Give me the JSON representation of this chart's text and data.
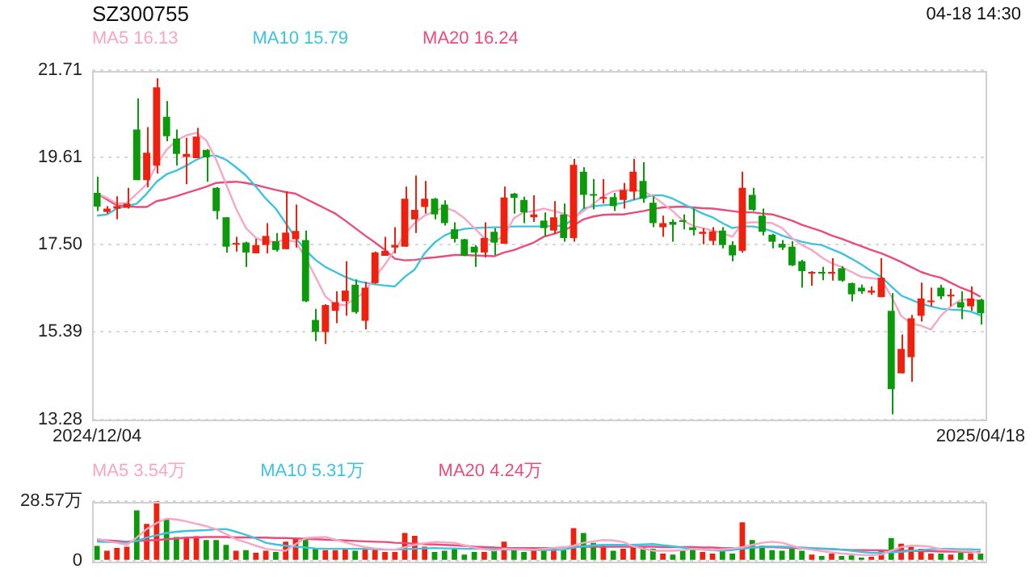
{
  "chart_data": [
    {
      "type": "candlestick",
      "title": "SZ300755",
      "annotations": [
        "04-18 14:30"
      ],
      "legend": "top left",
      "grid": "y",
      "ylim": [
        13.28,
        21.71
      ],
      "yticks": [
        21.71,
        19.61,
        {
          "value": 17.5,
          "label": "17.50"
        },
        15.39,
        13.28
      ],
      "categories": [
        "2024/12/04",
        null,
        null,
        null,
        null,
        null,
        null,
        null,
        null,
        null,
        null,
        null,
        null,
        null,
        null,
        null,
        null,
        null,
        null,
        null,
        null,
        null,
        null,
        null,
        null,
        null,
        null,
        null,
        null,
        null,
        null,
        null,
        null,
        null,
        null,
        null,
        null,
        null,
        null,
        null,
        null,
        null,
        null,
        null,
        null,
        null,
        null,
        null,
        null,
        null,
        null,
        null,
        null,
        null,
        null,
        null,
        null,
        null,
        null,
        null,
        null,
        null,
        null,
        null,
        null,
        null,
        null,
        null,
        null,
        null,
        null,
        null,
        null,
        null,
        null,
        null,
        null,
        null,
        null,
        null,
        null,
        null,
        null,
        null,
        null,
        null,
        null,
        null,
        null,
        "2025/04/18"
      ],
      "ohlc": [
        [
          18.75,
          19.14,
          18.31,
          18.42
        ],
        [
          18.29,
          18.43,
          18.25,
          18.37
        ],
        [
          18.37,
          18.67,
          18.11,
          18.43
        ],
        [
          18.39,
          18.87,
          18.37,
          18.49
        ],
        [
          20.28,
          21.03,
          19.06,
          19.06
        ],
        [
          19.06,
          20.34,
          18.88,
          19.72
        ],
        [
          19.41,
          21.52,
          19.22,
          21.3
        ],
        [
          20.59,
          20.97,
          20.0,
          20.12
        ],
        [
          20.06,
          20.28,
          19.41,
          19.69
        ],
        [
          19.62,
          20.08,
          18.96,
          19.69
        ],
        [
          19.59,
          20.32,
          19.59,
          20.11
        ],
        [
          19.79,
          19.81,
          19.02,
          19.61
        ],
        [
          18.87,
          18.89,
          18.11,
          18.31
        ],
        [
          18.16,
          18.16,
          17.31,
          17.45
        ],
        [
          17.5,
          17.69,
          17.33,
          17.52
        ],
        [
          17.55,
          17.57,
          16.96,
          17.31
        ],
        [
          17.29,
          17.64,
          17.29,
          17.49
        ],
        [
          17.49,
          18.02,
          17.29,
          17.71
        ],
        [
          17.58,
          17.78,
          17.33,
          17.37
        ],
        [
          17.39,
          18.79,
          17.39,
          17.79
        ],
        [
          17.63,
          18.47,
          17.43,
          17.83
        ],
        [
          17.61,
          17.84,
          16.11,
          16.13
        ],
        [
          15.68,
          15.95,
          15.17,
          15.39
        ],
        [
          15.39,
          16.06,
          15.1,
          16.04
        ],
        [
          15.9,
          16.37,
          15.6,
          16.11
        ],
        [
          16.13,
          17.1,
          15.78,
          16.39
        ],
        [
          16.53,
          16.66,
          15.83,
          15.87
        ],
        [
          15.66,
          16.6,
          15.45,
          16.46
        ],
        [
          16.57,
          17.33,
          16.55,
          17.31
        ],
        [
          17.23,
          17.69,
          17.23,
          17.35
        ],
        [
          17.43,
          17.92,
          17.29,
          17.49
        ],
        [
          17.45,
          18.9,
          17.45,
          18.61
        ],
        [
          18.11,
          19.17,
          17.78,
          18.34
        ],
        [
          18.41,
          19.04,
          18.25,
          18.61
        ],
        [
          18.61,
          18.63,
          18.11,
          18.23
        ],
        [
          18.47,
          18.57,
          17.96,
          18.02
        ],
        [
          17.87,
          18.04,
          17.55,
          17.64
        ],
        [
          17.63,
          17.64,
          17.22,
          17.23
        ],
        [
          17.45,
          17.49,
          16.96,
          17.31
        ],
        [
          17.31,
          18.04,
          17.19,
          17.66
        ],
        [
          17.81,
          17.9,
          17.25,
          17.55
        ],
        [
          17.52,
          18.9,
          17.52,
          18.64
        ],
        [
          18.73,
          18.75,
          18.25,
          18.63
        ],
        [
          18.58,
          18.66,
          18.02,
          18.28
        ],
        [
          18.16,
          18.69,
          18.05,
          18.23
        ],
        [
          18.08,
          18.28,
          17.7,
          17.9
        ],
        [
          17.84,
          18.55,
          17.76,
          18.16
        ],
        [
          18.23,
          18.49,
          17.57,
          17.66
        ],
        [
          17.66,
          19.57,
          17.57,
          19.43
        ],
        [
          19.26,
          19.37,
          18.37,
          18.7
        ],
        [
          18.7,
          19.08,
          18.35,
          18.68
        ],
        [
          18.61,
          19.08,
          18.49,
          18.65
        ],
        [
          18.65,
          18.75,
          18.31,
          18.43
        ],
        [
          18.58,
          18.99,
          18.37,
          18.82
        ],
        [
          18.78,
          19.57,
          18.58,
          19.26
        ],
        [
          19.04,
          19.49,
          18.51,
          18.61
        ],
        [
          18.51,
          18.67,
          17.92,
          18.02
        ],
        [
          17.92,
          18.2,
          17.69,
          18.02
        ],
        [
          18.05,
          18.11,
          17.57,
          17.98
        ],
        [
          18.08,
          18.23,
          17.87,
          18.05
        ],
        [
          17.92,
          18.37,
          17.72,
          17.85
        ],
        [
          17.76,
          17.9,
          17.51,
          17.81
        ],
        [
          17.59,
          17.92,
          17.49,
          17.82
        ],
        [
          17.84,
          17.92,
          17.41,
          17.49
        ],
        [
          17.49,
          17.58,
          17.1,
          17.24
        ],
        [
          17.35,
          19.26,
          17.31,
          18.87
        ],
        [
          18.7,
          18.87,
          18.31,
          18.34
        ],
        [
          18.2,
          18.37,
          17.72,
          17.81
        ],
        [
          17.74,
          17.76,
          17.41,
          17.57
        ],
        [
          17.52,
          17.61,
          17.37,
          17.43
        ],
        [
          17.45,
          17.58,
          16.98,
          17.0
        ],
        [
          17.1,
          17.13,
          16.46,
          16.86
        ],
        [
          16.8,
          16.86,
          16.51,
          16.84
        ],
        [
          16.84,
          16.96,
          16.64,
          16.8
        ],
        [
          16.8,
          17.17,
          16.63,
          16.84
        ],
        [
          16.93,
          16.98,
          16.6,
          16.63
        ],
        [
          16.57,
          16.58,
          16.13,
          16.3
        ],
        [
          16.46,
          16.54,
          16.31,
          16.37
        ],
        [
          16.34,
          16.49,
          16.29,
          16.39
        ],
        [
          16.23,
          17.17,
          16.23,
          16.7
        ],
        [
          15.9,
          16.33,
          13.4,
          14.01
        ],
        [
          14.39,
          15.33,
          14.39,
          14.98
        ],
        [
          14.78,
          15.8,
          14.19,
          15.72
        ],
        [
          15.78,
          16.58,
          15.64,
          16.2
        ],
        [
          16.11,
          16.46,
          16.01,
          16.14
        ],
        [
          16.46,
          16.53,
          16.18,
          16.25
        ],
        [
          16.25,
          16.43,
          16.01,
          16.29
        ],
        [
          16.11,
          16.37,
          15.7,
          15.98
        ],
        [
          16.01,
          16.49,
          15.9,
          16.2
        ],
        [
          16.17,
          16.19,
          15.57,
          15.84
        ]
      ],
      "colors": [
        "#0a9a0a",
        "#f0200e",
        "#f0200e",
        "#f0200e",
        "#0a9a0a",
        "#f0200e",
        "#f0200e",
        "#0a9a0a",
        "#0a9a0a",
        "#f0200e",
        "#f0200e",
        "#0a9a0a",
        "#0a9a0a",
        "#0a9a0a",
        "#f0200e",
        "#0a9a0a",
        "#f0200e",
        "#f0200e",
        "#0a9a0a",
        "#f0200e",
        "#f0200e",
        "#0a9a0a",
        "#0a9a0a",
        "#f0200e",
        "#f0200e",
        "#f0200e",
        "#0a9a0a",
        "#f0200e",
        "#f0200e",
        "#f0200e",
        "#f0200e",
        "#f0200e",
        "#f0200e",
        "#f0200e",
        "#0a9a0a",
        "#0a9a0a",
        "#0a9a0a",
        "#0a9a0a",
        "#0a9a0a",
        "#f0200e",
        "#0a9a0a",
        "#f0200e",
        "#0a9a0a",
        "#0a9a0a",
        "#f0200e",
        "#0a9a0a",
        "#f0200e",
        "#0a9a0a",
        "#f0200e",
        "#0a9a0a",
        "#0a9a0a",
        "#f0200e",
        "#0a9a0a",
        "#f0200e",
        "#f0200e",
        "#0a9a0a",
        "#0a9a0a",
        "#f0200e",
        "#0a9a0a",
        "#0a9a0a",
        "#0a9a0a",
        "#f0200e",
        "#f0200e",
        "#0a9a0a",
        "#0a9a0a",
        "#f0200e",
        "#0a9a0a",
        "#0a9a0a",
        "#0a9a0a",
        "#0a9a0a",
        "#0a9a0a",
        "#0a9a0a",
        "#f0200e",
        "#0a9a0a",
        "#f0200e",
        "#0a9a0a",
        "#0a9a0a",
        "#0a9a0a",
        "#f0200e",
        "#f0200e",
        "#0a9a0a",
        "#f0200e",
        "#f0200e",
        "#f0200e",
        "#f0200e",
        "#0a9a0a",
        "#f0200e",
        "#0a9a0a",
        "#f0200e",
        "#0a9a0a"
      ],
      "series": [
        {
          "name": "MA5 16.13",
          "type": "line",
          "color": "#f7a7c4",
          "values": [
            18.73,
            18.63,
            18.49,
            18.51,
            18.73,
            18.96,
            19.43,
            19.79,
            20.02,
            20.14,
            20.2,
            20.02,
            19.55,
            18.96,
            18.37,
            17.9,
            17.66,
            17.57,
            17.57,
            17.61,
            17.57,
            17.19,
            16.72,
            16.25,
            16.05,
            16.04,
            16.19,
            16.37,
            16.72,
            17.02,
            17.37,
            17.76,
            18.02,
            18.2,
            18.31,
            18.4,
            18.31,
            18.14,
            17.9,
            17.66,
            17.57,
            17.72,
            18.14,
            18.28,
            18.31,
            18.37,
            18.31,
            18.25,
            18.14,
            18.31,
            18.49,
            18.67,
            18.79,
            18.82,
            18.82,
            18.79,
            18.67,
            18.49,
            18.31,
            18.08,
            17.96,
            17.9,
            17.84,
            17.78,
            17.69,
            18.02,
            18.04,
            18.04,
            18.02,
            17.9,
            17.66,
            17.49,
            17.37,
            17.19,
            17.05,
            16.96,
            16.84,
            16.72,
            16.69,
            16.66,
            16.25,
            15.78,
            15.6,
            15.54,
            15.45,
            15.78,
            16.01,
            16.16,
            16.18,
            16.13
          ]
        },
        {
          "name": "MA10 15.79",
          "type": "line",
          "color": "#3cc4e0",
          "values": [
            18.2,
            18.23,
            18.37,
            18.43,
            18.49,
            18.73,
            19.02,
            19.2,
            19.29,
            19.41,
            19.55,
            19.65,
            19.65,
            19.55,
            19.37,
            19.17,
            18.9,
            18.61,
            18.37,
            18.02,
            17.66,
            17.37,
            17.13,
            16.96,
            16.84,
            16.72,
            16.63,
            16.58,
            16.54,
            16.51,
            16.49,
            16.72,
            16.9,
            17.29,
            17.55,
            17.72,
            17.82,
            17.88,
            17.9,
            17.91,
            17.92,
            17.92,
            17.94,
            17.94,
            17.94,
            17.94,
            17.95,
            17.96,
            18.11,
            18.37,
            18.43,
            18.45,
            18.47,
            18.51,
            18.58,
            18.64,
            18.69,
            18.69,
            18.61,
            18.49,
            18.37,
            18.25,
            18.16,
            18.02,
            17.9,
            17.94,
            17.94,
            17.9,
            17.82,
            17.72,
            17.64,
            17.57,
            17.52,
            17.49,
            17.39,
            17.29,
            17.16,
            17.02,
            16.86,
            16.72,
            16.49,
            16.27,
            16.17,
            16.07,
            16.01,
            15.95,
            15.93,
            15.92,
            15.88,
            15.79
          ]
        },
        {
          "name": "MA20 16.24",
          "type": "line",
          "color": "#ec4c7c",
          "values": [
            18.73,
            18.59,
            18.45,
            18.43,
            18.41,
            18.41,
            18.55,
            18.6,
            18.67,
            18.75,
            18.82,
            18.9,
            18.99,
            19.01,
            19.02,
            18.99,
            18.94,
            18.88,
            18.82,
            18.77,
            18.73,
            18.61,
            18.49,
            18.37,
            18.25,
            18.08,
            17.9,
            17.72,
            17.55,
            17.37,
            17.16,
            17.12,
            17.13,
            17.17,
            17.19,
            17.22,
            17.25,
            17.25,
            17.24,
            17.23,
            17.22,
            17.31,
            17.37,
            17.46,
            17.55,
            17.69,
            17.76,
            17.84,
            17.96,
            18.11,
            18.18,
            18.22,
            18.23,
            18.23,
            18.27,
            18.31,
            18.36,
            18.4,
            18.41,
            18.42,
            18.4,
            18.38,
            18.37,
            18.34,
            18.31,
            18.28,
            18.28,
            18.25,
            18.23,
            18.16,
            18.08,
            17.98,
            17.9,
            17.82,
            17.72,
            17.64,
            17.55,
            17.46,
            17.37,
            17.29,
            17.19,
            17.08,
            16.96,
            16.84,
            16.76,
            16.7,
            16.58,
            16.46,
            16.37,
            16.24
          ]
        }
      ]
    },
    {
      "type": "bar",
      "legend": "top left",
      "grid": "y",
      "tick_labels": "y",
      "ylim": [
        0,
        28.57
      ],
      "yticks": [
        {
          "value": 28.57,
          "label": "28.57万"
        },
        0
      ],
      "categories": [
        null,
        null,
        null,
        null,
        null,
        null,
        null,
        null,
        null,
        null,
        null,
        null,
        null,
        null,
        null,
        null,
        null,
        null,
        null,
        null,
        null,
        null,
        null,
        null,
        null,
        null,
        null,
        null,
        null,
        null,
        null,
        null,
        null,
        null,
        null,
        null,
        null,
        null,
        null,
        null,
        null,
        null,
        null,
        null,
        null,
        null,
        null,
        null,
        null,
        null,
        null,
        null,
        null,
        null,
        null,
        null,
        null,
        null,
        null,
        null,
        null,
        null,
        null,
        null,
        null,
        null,
        null,
        null,
        null,
        null,
        null,
        null,
        null,
        null,
        null,
        null,
        null,
        null,
        null,
        null,
        null,
        null,
        null,
        null,
        null,
        null,
        null,
        null,
        null,
        null
      ],
      "series": [
        {
          "type": "bar",
          "colors": [
            "#0a9a0a",
            "#f0200e",
            "#f0200e",
            "#f0200e",
            "#0a9a0a",
            "#f0200e",
            "#f0200e",
            "#0a9a0a",
            "#0a9a0a",
            "#f0200e",
            "#f0200e",
            "#0a9a0a",
            "#0a9a0a",
            "#0a9a0a",
            "#f0200e",
            "#0a9a0a",
            "#f0200e",
            "#f0200e",
            "#0a9a0a",
            "#f0200e",
            "#f0200e",
            "#0a9a0a",
            "#0a9a0a",
            "#f0200e",
            "#f0200e",
            "#f0200e",
            "#0a9a0a",
            "#f0200e",
            "#f0200e",
            "#f0200e",
            "#f0200e",
            "#f0200e",
            "#f0200e",
            "#f0200e",
            "#0a9a0a",
            "#0a9a0a",
            "#0a9a0a",
            "#0a9a0a",
            "#0a9a0a",
            "#f0200e",
            "#0a9a0a",
            "#f0200e",
            "#0a9a0a",
            "#0a9a0a",
            "#f0200e",
            "#0a9a0a",
            "#f0200e",
            "#0a9a0a",
            "#f0200e",
            "#0a9a0a",
            "#0a9a0a",
            "#f0200e",
            "#0a9a0a",
            "#f0200e",
            "#f0200e",
            "#0a9a0a",
            "#0a9a0a",
            "#f0200e",
            "#0a9a0a",
            "#0a9a0a",
            "#0a9a0a",
            "#f0200e",
            "#f0200e",
            "#0a9a0a",
            "#0a9a0a",
            "#f0200e",
            "#0a9a0a",
            "#0a9a0a",
            "#0a9a0a",
            "#0a9a0a",
            "#0a9a0a",
            "#0a9a0a",
            "#f0200e",
            "#0a9a0a",
            "#f0200e",
            "#0a9a0a",
            "#0a9a0a",
            "#0a9a0a",
            "#f0200e",
            "#f0200e",
            "#0a9a0a",
            "#f0200e",
            "#f0200e",
            "#f0200e",
            "#f0200e",
            "#0a9a0a",
            "#f0200e",
            "#0a9a0a",
            "#f0200e",
            "#0a9a0a"
          ],
          "values": [
            7.1,
            4.8,
            6.1,
            6.7,
            24.2,
            17.7,
            28.57,
            20.0,
            11.4,
            11.1,
            11.8,
            9.9,
            9.9,
            7.6,
            4.8,
            5.1,
            3.8,
            4.8,
            4.2,
            9.1,
            10.5,
            9.9,
            5.7,
            5.1,
            5.1,
            5.7,
            4.8,
            5.7,
            5.7,
            4.2,
            4.2,
            13.3,
            12.0,
            6.7,
            4.2,
            4.8,
            5.7,
            2.9,
            4.2,
            4.2,
            5.1,
            9.1,
            5.1,
            4.2,
            6.1,
            5.1,
            6.1,
            5.1,
            15.6,
            13.3,
            8.6,
            7.6,
            4.8,
            5.7,
            7.6,
            6.3,
            5.7,
            3.4,
            2.9,
            4.8,
            5.3,
            4.2,
            3.4,
            4.8,
            3.4,
            18.5,
            9.9,
            7.2,
            5.1,
            4.8,
            6.1,
            4.8,
            2.9,
            2.3,
            3.4,
            2.3,
            2.5,
            1.5,
            1.9,
            4.8,
            10.9,
            8.2,
            6.7,
            5.7,
            3.4,
            3.4,
            2.9,
            3.8,
            3.4,
            3.4
          ]
        },
        {
          "name": "MA5 3.54万",
          "type": "line",
          "color": "#f7a7c4",
          "values": [
            10.5,
            9.5,
            8.6,
            7.6,
            11.1,
            15.2,
            18.1,
            20.2,
            19.8,
            18.9,
            17.7,
            16.6,
            15.1,
            12.8,
            10.3,
            8.8,
            7.2,
            5.7,
            5.1,
            4.8,
            8.0,
            10.9,
            11.2,
            11.4,
            10.1,
            8.8,
            7.6,
            6.5,
            5.9,
            5.5,
            5.3,
            6.5,
            7.6,
            8.4,
            9.0,
            8.8,
            8.6,
            7.4,
            6.3,
            5.5,
            4.8,
            5.7,
            5.5,
            5.5,
            5.3,
            5.7,
            6.1,
            6.3,
            7.2,
            8.6,
            9.3,
            9.9,
            9.7,
            9.0,
            6.9,
            5.7,
            4.8,
            4.8,
            4.8,
            5.1,
            5.7,
            5.3,
            5.1,
            5.5,
            5.9,
            6.5,
            7.6,
            8.6,
            9.1,
            8.6,
            7.2,
            5.9,
            5.3,
            4.6,
            4.0,
            3.4,
            3.1,
            2.7,
            2.7,
            2.9,
            4.8,
            6.5,
            7.2,
            7.1,
            6.7,
            5.5,
            5.1,
            4.8,
            4.6,
            3.54
          ]
        },
        {
          "name": "MA10 5.31万",
          "type": "line",
          "color": "#3cc4e0",
          "values": [
            9.1,
            9.0,
            8.8,
            8.6,
            9.5,
            11.1,
            12.2,
            13.3,
            13.9,
            14.3,
            14.5,
            14.7,
            15.1,
            15.2,
            13.9,
            12.4,
            10.7,
            8.6,
            7.8,
            7.2,
            6.7,
            6.3,
            5.9,
            5.7,
            5.7,
            5.7,
            5.7,
            5.7,
            5.5,
            5.3,
            5.3,
            5.5,
            5.7,
            5.9,
            6.1,
            5.9,
            5.9,
            5.7,
            5.7,
            5.7,
            5.5,
            5.3,
            5.3,
            5.3,
            5.1,
            5.1,
            5.1,
            5.3,
            6.3,
            6.9,
            7.4,
            7.6,
            7.6,
            7.6,
            7.6,
            7.8,
            8.0,
            7.4,
            6.9,
            6.3,
            5.7,
            5.3,
            5.0,
            4.8,
            5.1,
            5.7,
            6.3,
            6.7,
            6.7,
            6.7,
            6.5,
            6.3,
            6.1,
            5.9,
            5.7,
            5.3,
            4.8,
            4.2,
            3.8,
            3.8,
            4.0,
            4.2,
            4.8,
            5.1,
            5.5,
            5.7,
            5.7,
            5.5,
            5.5,
            5.31
          ]
        },
        {
          "name": "MA20 4.24万",
          "type": "line",
          "color": "#ec4c7c",
          "values": [
            9.9,
            9.7,
            9.5,
            9.1,
            9.5,
            9.7,
            9.9,
            10.3,
            10.7,
            11.1,
            11.2,
            11.4,
            11.4,
            11.4,
            11.2,
            11.2,
            11.1,
            11.1,
            10.9,
            10.9,
            10.7,
            10.5,
            10.3,
            10.1,
            9.9,
            9.7,
            9.5,
            9.3,
            9.1,
            9.0,
            8.6,
            8.4,
            8.2,
            8.0,
            7.8,
            7.6,
            7.4,
            7.1,
            6.7,
            6.5,
            6.3,
            6.1,
            6.1,
            6.1,
            6.1,
            6.1,
            6.1,
            6.3,
            6.7,
            6.7,
            6.7,
            6.7,
            6.7,
            6.7,
            6.7,
            6.7,
            6.7,
            6.5,
            6.5,
            6.5,
            6.5,
            6.3,
            6.3,
            6.1,
            6.1,
            6.1,
            6.3,
            6.5,
            6.5,
            6.3,
            6.1,
            5.9,
            5.7,
            5.7,
            5.5,
            5.3,
            5.1,
            5.1,
            5.0,
            5.0,
            4.8,
            4.8,
            4.8,
            4.6,
            4.6,
            4.4,
            4.4,
            4.4,
            4.2,
            4.24
          ]
        }
      ]
    }
  ]
}
